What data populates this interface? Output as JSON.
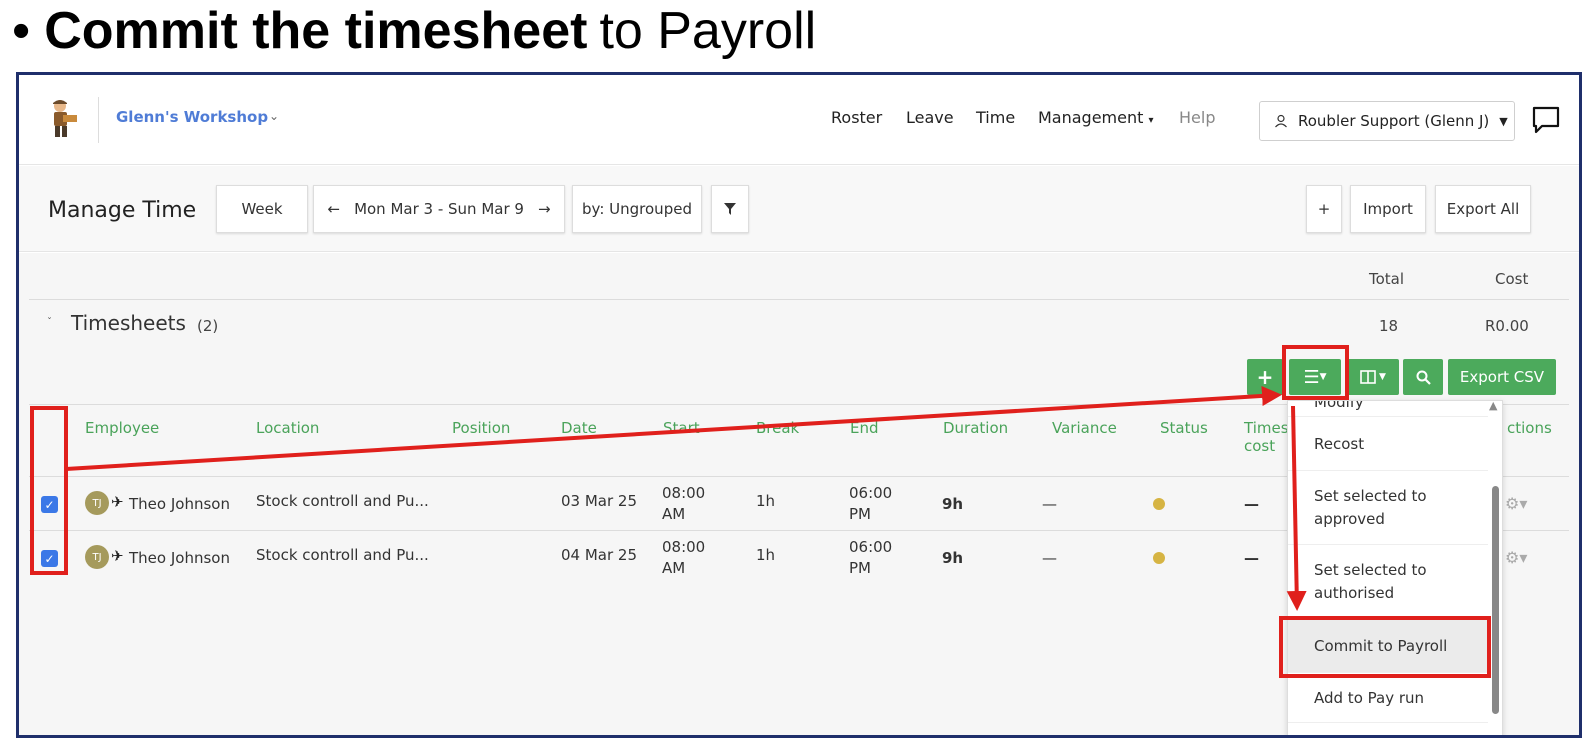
{
  "slide": {
    "bullet": "•",
    "title_bold": "Commit the timesheet",
    "title_rest": "to Payroll"
  },
  "nav": {
    "org_name": "Glenn's Workshop",
    "menu": [
      "Roster",
      "Leave",
      "Time",
      "Management",
      "Help"
    ],
    "user": "Roubler Support (Glenn J)"
  },
  "toolbar": {
    "page_title": "Manage Time",
    "week": "Week",
    "date_range": "Mon Mar 3 - Sun Mar 9",
    "group_by": "by: Ungrouped",
    "plus": "+",
    "import": "Import",
    "export_all": "Export All"
  },
  "summary": {
    "total_label": "Total",
    "cost_label": "Cost",
    "total": "18",
    "cost": "R0.00"
  },
  "timesheets": {
    "title": "Timesheets",
    "count": "(2)"
  },
  "actions": {
    "export_csv": "Export CSV"
  },
  "table": {
    "columns": [
      "Employee",
      "Location",
      "Position",
      "Date",
      "Start",
      "Break",
      "End",
      "Duration",
      "Variance",
      "Status",
      "Times",
      "cost",
      "ctions"
    ],
    "rows": [
      {
        "initials": "TJ",
        "employee": "Theo Johnson",
        "location": "Stock controll and Pu...",
        "date": "03 Mar 25",
        "start1": "08:00",
        "start2": "AM",
        "break": "1h",
        "end1": "06:00",
        "end2": "PM",
        "duration": "9h",
        "variance": "—",
        "cost": "—"
      },
      {
        "initials": "TJ",
        "employee": "Theo Johnson",
        "location": "Stock controll and Pu...",
        "date": "04 Mar 25",
        "start1": "08:00",
        "start2": "AM",
        "break": "1h",
        "end1": "06:00",
        "end2": "PM",
        "duration": "9h",
        "variance": "—",
        "cost": "—"
      }
    ]
  },
  "dropdown": {
    "items": [
      "Modify",
      "Recost",
      "Set selected to approved",
      "Set selected to authorised",
      "Commit to Payroll",
      "Add to Pay run"
    ]
  },
  "colors": {
    "green": "#4caa5c",
    "red": "#e0201c",
    "frame": "#1f2f6b",
    "link_blue": "#4f7cd6"
  }
}
